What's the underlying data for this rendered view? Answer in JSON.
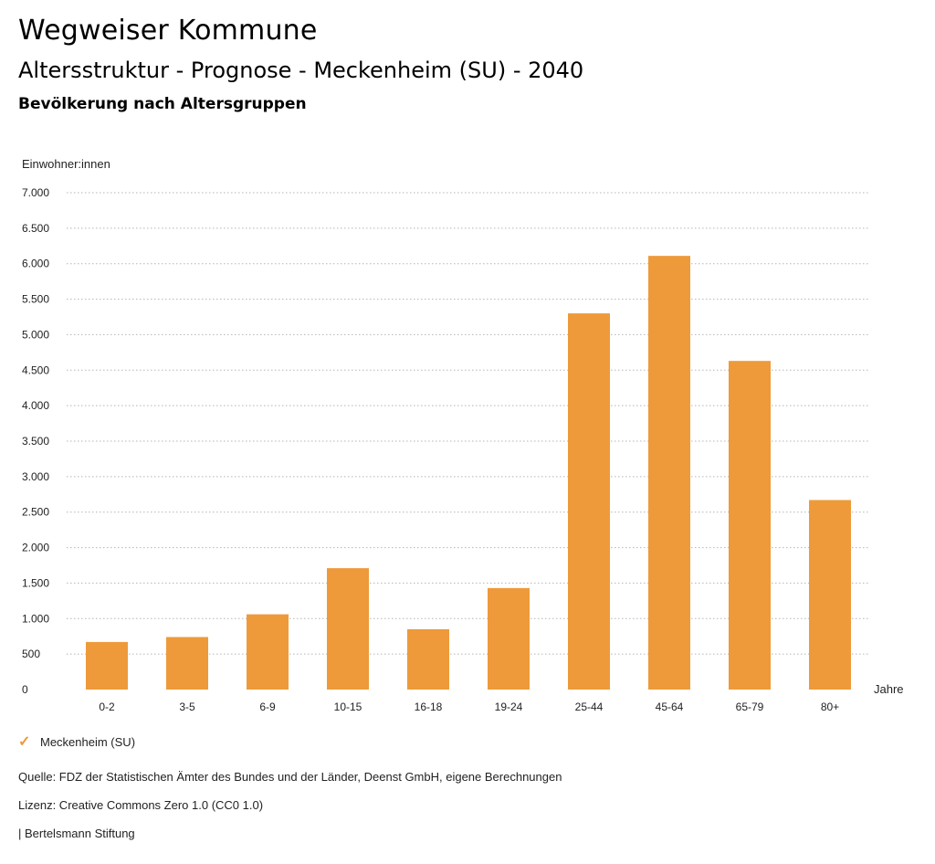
{
  "header": {
    "title": "Wegweiser Kommune",
    "subtitle": "Altersstruktur - Prognose - Meckenheim (SU) - 2040",
    "subtitle2": "Bevölkerung nach Altersgruppen"
  },
  "colors": {
    "bar": "#ee9a3a",
    "grid": "#b5b5b5"
  },
  "chart_data": {
    "type": "bar",
    "ylabel": "Einwohner:innen",
    "xlabel": "Jahre",
    "categories": [
      "0-2",
      "3-5",
      "6-9",
      "10-15",
      "16-18",
      "19-24",
      "25-44",
      "45-64",
      "65-79",
      "80+"
    ],
    "series": [
      {
        "name": "Meckenheim (SU)",
        "values": [
          670,
          740,
          1060,
          1710,
          850,
          1430,
          5300,
          6110,
          4630,
          2670
        ]
      }
    ],
    "ylim": [
      0,
      7000
    ],
    "yticks": [
      0,
      500,
      1000,
      1500,
      2000,
      2500,
      3000,
      3500,
      4000,
      4500,
      5000,
      5500,
      6000,
      6500,
      7000
    ],
    "ytick_labels": [
      "0",
      "500",
      "1.000",
      "1.500",
      "2.000",
      "2.500",
      "3.000",
      "3.500",
      "4.000",
      "4.500",
      "5.000",
      "5.500",
      "6.000",
      "6.500",
      "7.000"
    ],
    "grid": true,
    "legend": "bottom-left"
  },
  "legend": {
    "label": "Meckenheim (SU)"
  },
  "footer": {
    "source": "Quelle: FDZ der Statistischen Ämter des Bundes und der Länder, Deenst GmbH, eigene Berechnungen",
    "license": "Lizenz: Creative Commons Zero 1.0 (CC0 1.0)",
    "publisher": "| Bertelsmann Stiftung"
  }
}
